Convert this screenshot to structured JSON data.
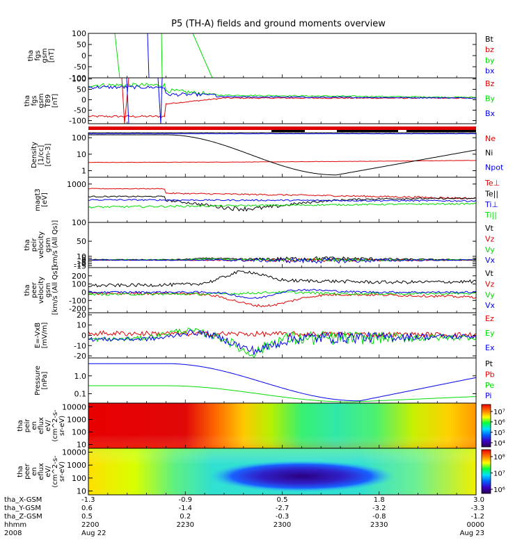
{
  "title": "P5 (TH-A) fields and ground moments overview",
  "colors": {
    "black": "#000000",
    "red": "#e00000",
    "green": "#00dd00",
    "blue": "#0000ee"
  },
  "chart_data": [
    {
      "type": "line",
      "ylabel_lines": [
        "tha",
        "fgs",
        "gsm",
        "[nT]"
      ],
      "ylim": [
        -100,
        100
      ],
      "y_ticks": [
        "100",
        "50",
        "0",
        "-50",
        "-100"
      ],
      "series": [
        {
          "name": "Bt",
          "color": "#000000"
        },
        {
          "name": "bz",
          "color": "#e00000"
        },
        {
          "name": "by",
          "color": "#00dd00"
        },
        {
          "name": "bx",
          "color": "#0000ee"
        }
      ]
    },
    {
      "type": "line",
      "ylabel_lines": [
        "tha",
        "fgs",
        "gsm",
        "T89",
        "[nT]"
      ],
      "ylim": [
        -115,
        105
      ],
      "y_ticks": [
        "100",
        "50",
        "0",
        "-50",
        "-100"
      ],
      "series": [
        {
          "name": "Bz",
          "color": "#e00000"
        },
        {
          "name": "By",
          "color": "#00dd00"
        },
        {
          "name": "Bx",
          "color": "#0000ee"
        }
      ]
    },
    {
      "type": "line",
      "ylabel_lines": [
        "Density",
        "[1/cc]",
        "[cm-3]"
      ],
      "scale": "log",
      "ylim": [
        0.4,
        200
      ],
      "y_ticks": [
        "100",
        "10",
        "1"
      ],
      "series": [
        {
          "name": "Ne",
          "color": "#e00000"
        },
        {
          "name": "Ni",
          "color": "#000000"
        },
        {
          "name": "Npot",
          "color": "#0000ee"
        }
      ]
    },
    {
      "type": "line",
      "ylabel_lines": [
        "magt3",
        "[eV]"
      ],
      "scale": "log",
      "ylim": [
        20,
        2000
      ],
      "y_ticks": [
        "1000"
      ],
      "series": [
        {
          "name": "Te⊥",
          "color": "#e00000"
        },
        {
          "name": "Te||",
          "color": "#000000"
        },
        {
          "name": "Ti⊥",
          "color": "#0000ee"
        },
        {
          "name": "Ti||",
          "color": "#00dd00"
        }
      ]
    },
    {
      "type": "line",
      "ylabel_lines": [
        "tha",
        "peir",
        "velocity",
        "gsm",
        "[km/s (All Qs)]"
      ],
      "ylim": [
        -20,
        100
      ],
      "y_ticks": [
        "100",
        "50",
        "10",
        "5",
        "0",
        "-5",
        "-10",
        "-15"
      ],
      "series": [
        {
          "name": "Vt",
          "color": "#000000"
        },
        {
          "name": "Vz",
          "color": "#e00000"
        },
        {
          "name": "Vy",
          "color": "#00dd00"
        },
        {
          "name": "Vx",
          "color": "#0000ee"
        }
      ]
    },
    {
      "type": "line",
      "ylabel_lines": [
        "tha",
        "peer",
        "velocity",
        "gsm",
        "[km/s (All Qs)]"
      ],
      "ylim": [
        -250,
        300
      ],
      "y_ticks": [
        "200",
        "100",
        "0",
        "-100",
        "-200"
      ],
      "series": [
        {
          "name": "Vt",
          "color": "#000000"
        },
        {
          "name": "Vz",
          "color": "#e00000"
        },
        {
          "name": "Vy",
          "color": "#00dd00"
        },
        {
          "name": "Vx",
          "color": "#0000ee"
        }
      ]
    },
    {
      "type": "line",
      "ylabel_lines": [
        "E=-VxB",
        "[mV/m]"
      ],
      "ylim": [
        -22,
        22
      ],
      "y_ticks": [
        "20",
        "10",
        "0",
        "-10",
        "-20"
      ],
      "series": [
        {
          "name": "Ez",
          "color": "#e00000"
        },
        {
          "name": "Ey",
          "color": "#00dd00"
        },
        {
          "name": "Ex",
          "color": "#0000ee"
        }
      ]
    },
    {
      "type": "line",
      "ylabel_lines": [
        "Pressure",
        "[nPa]"
      ],
      "scale": "log",
      "ylim": [
        0.03,
        10
      ],
      "y_ticks": [
        "1.0",
        "0.1"
      ],
      "series": [
        {
          "name": "Pt",
          "color": "#000000"
        },
        {
          "name": "Pb",
          "color": "#e00000"
        },
        {
          "name": "Pe",
          "color": "#00dd00"
        },
        {
          "name": "Pi",
          "color": "#0000ee"
        }
      ]
    },
    {
      "type": "heatmap",
      "ylabel_lines": [
        "tha",
        "peir",
        "en",
        "eflux",
        "eV/",
        "(cm^2-s-",
        "sr-eV)"
      ],
      "scale": "log",
      "ylim": [
        5,
        20000
      ],
      "y_ticks": [
        "10000",
        "1000",
        "100",
        "10"
      ],
      "colorbar_ticks": [
        "10⁷",
        "10⁶",
        "10⁵",
        "10⁴"
      ]
    },
    {
      "type": "heatmap",
      "ylabel_lines": [
        "tha",
        "peer",
        "en",
        "eflux",
        "eV/",
        "(cm^2-s-",
        "sr-eV)"
      ],
      "scale": "log",
      "ylim": [
        5,
        20000
      ],
      "y_ticks": [
        "10000",
        "1000",
        "100",
        "10"
      ],
      "colorbar_ticks": [
        "10⁸",
        "10⁷",
        "10⁶"
      ]
    }
  ],
  "x_axis": {
    "row_labels": [
      "tha_X-GSM",
      "tha_Y-GSM",
      "tha_Z-GSM",
      "hhmm",
      "2008"
    ],
    "ticks": [
      {
        "x": "-1.3",
        "y": "0.6",
        "z": "0.5",
        "hhmm": "2200",
        "date": "Aug 22"
      },
      {
        "x": "-0.9",
        "y": "-1.4",
        "z": "0.2",
        "hhmm": "2230",
        "date": ""
      },
      {
        "x": "0.5",
        "y": "-2.7",
        "z": "-0.3",
        "hhmm": "2300",
        "date": ""
      },
      {
        "x": "1.8",
        "y": "-3.2",
        "z": "-0.8",
        "hhmm": "2330",
        "date": ""
      },
      {
        "x": "3.0",
        "y": "-3.3",
        "z": "-1.2",
        "hhmm": "0000",
        "date": "Aug 23"
      }
    ]
  }
}
